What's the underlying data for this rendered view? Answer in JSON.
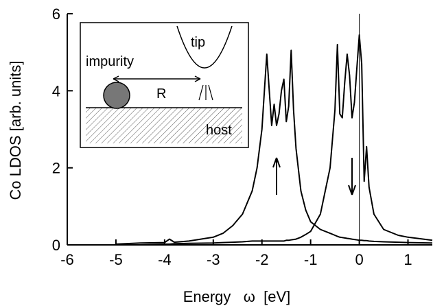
{
  "chart_data": {
    "type": "line",
    "xlabel": "Energy   ω  [eV]",
    "ylabel": "Co LDOS  [arb. units]",
    "x": [
      -5,
      -4.5,
      -4,
      -3.9,
      -3.8,
      -3.5,
      -3,
      -2.8,
      -2.6,
      -2.4,
      -2.2,
      -2.1,
      -2.0,
      -1.95,
      -1.9,
      -1.85,
      -1.8,
      -1.75,
      -1.7,
      -1.65,
      -1.6,
      -1.55,
      -1.5,
      -1.45,
      -1.4,
      -1.35,
      -1.3,
      -1.2,
      -1.1,
      -1.0,
      -0.8,
      -0.6,
      -0.5,
      -0.45,
      -0.4,
      -0.35,
      -0.3,
      -0.25,
      -0.2,
      -0.15,
      -0.1,
      -0.05,
      0,
      0.05,
      0.1,
      0.15,
      0.2,
      0.3,
      0.5,
      0.8,
      1.0,
      1.5
    ],
    "series": [
      {
        "color": "#000000",
        "values": [
          0.02,
          0.05,
          0.06,
          0.15,
          0.07,
          0.1,
          0.2,
          0.3,
          0.5,
          0.8,
          1.4,
          2.0,
          3.0,
          4.0,
          4.95,
          4.0,
          3.1,
          3.65,
          3.1,
          3.4,
          4.0,
          4.3,
          3.2,
          3.6,
          5.05,
          3.5,
          2.5,
          1.4,
          0.9,
          0.6,
          0.4,
          0.3,
          0.25,
          0.22,
          0.2,
          0.19,
          0.18,
          0.17,
          0.16,
          0.15,
          0.14,
          0.13,
          0.12,
          0.12,
          0.11,
          0.11,
          0.1,
          0.09,
          0.08,
          0.07,
          0.06,
          0.05
        ]
      },
      {
        "color": "#000000",
        "values": [
          0.0,
          0.0,
          0.02,
          0.02,
          0.03,
          0.04,
          0.05,
          0.06,
          0.07,
          0.08,
          0.1,
          0.1,
          0.1,
          0.1,
          0.1,
          0.1,
          0.1,
          0.1,
          0.1,
          0.1,
          0.1,
          0.1,
          0.12,
          0.12,
          0.13,
          0.14,
          0.15,
          0.2,
          0.27,
          0.35,
          0.8,
          2.0,
          3.5,
          5.2,
          3.4,
          3.3,
          4.2,
          4.95,
          4.4,
          3.3,
          3.7,
          4.6,
          5.45,
          4.7,
          1.65,
          2.55,
          1.5,
          0.8,
          0.4,
          0.25,
          0.2,
          0.12
        ]
      }
    ],
    "xlim": [
      -6,
      1.5
    ],
    "xticks": [
      -6,
      -5,
      -4,
      -3,
      -2,
      -1,
      0,
      1
    ],
    "ylim": [
      0,
      6
    ],
    "yticks": [
      0,
      2,
      4,
      6
    ],
    "vline": 0,
    "inset": {
      "impurity": "impurity",
      "tip": "tip",
      "distance": "R",
      "host": "host"
    }
  }
}
